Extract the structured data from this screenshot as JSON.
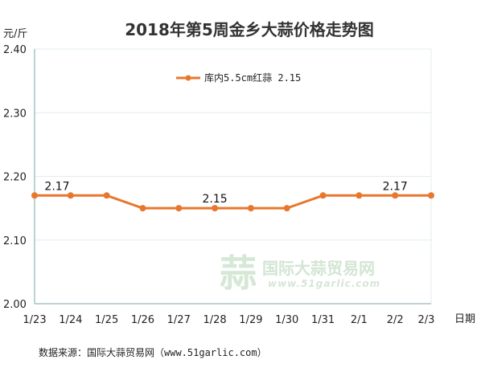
{
  "chart_data": {
    "type": "line",
    "title": "2018年第5周金乡大蒜价格走势图",
    "ylabel": "元/斤",
    "xlabel": "日期",
    "ylim": [
      2.0,
      2.4
    ],
    "yticks": [
      "2.00",
      "2.10",
      "2.20",
      "2.30",
      "2.40"
    ],
    "categories": [
      "1/23",
      "1/24",
      "1/25",
      "1/26",
      "1/27",
      "1/28",
      "1/29",
      "1/30",
      "1/31",
      "2/1",
      "2/2",
      "2/3"
    ],
    "series": [
      {
        "name": "库内5.5cm红蒜 2.15",
        "values": [
          2.17,
          2.17,
          2.17,
          2.15,
          2.15,
          2.15,
          2.15,
          2.15,
          2.17,
          2.17,
          2.17,
          2.17
        ],
        "color": "#E8772E"
      }
    ],
    "data_labels": [
      {
        "index": 0,
        "text": "2.17"
      },
      {
        "index": 5,
        "text": "2.15"
      },
      {
        "index": 10,
        "text": "2.17"
      }
    ],
    "legend_position": "top-center",
    "grid": true
  },
  "watermark": {
    "logo_text": "蒜",
    "name": "国际大蒜贸易网",
    "url": "www.51garlic.com"
  },
  "source_note": "数据来源：国际大蒜贸易网（www.51garlic.com）",
  "colors": {
    "line": "#E8772E",
    "grid": "#e2ecec",
    "axis": "#7aa7a7",
    "watermark": "#cfe3cf"
  }
}
